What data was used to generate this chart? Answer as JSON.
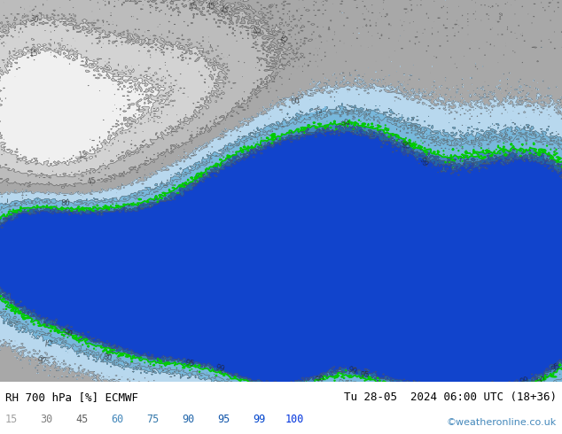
{
  "title_left": "RH 700 hPa [%] ECMWF",
  "title_right": "Tu 28-05  2024 06:00 UTC (18+36)",
  "credit": "©weatheronline.co.uk",
  "legend_values": [
    15,
    30,
    45,
    60,
    75,
    90,
    95,
    99,
    100
  ],
  "legend_text_colors": [
    "#a0a0a0",
    "#808080",
    "#606060",
    "#4488bb",
    "#3377aa",
    "#2266aa",
    "#1155aa",
    "#0044cc",
    "#0033dd"
  ],
  "contour_color": "#555555",
  "highlight_color": "#00cc00",
  "bg_color": "#d0d0d0",
  "fill_colors": [
    "#f0f0f0",
    "#d3d3d3",
    "#bcbcbc",
    "#a8a8a8",
    "#b8d8ee",
    "#78b8dc",
    "#4488c0",
    "#2266a8",
    "#1144cc"
  ],
  "fill_levels": [
    0,
    15,
    30,
    45,
    60,
    75,
    90,
    95,
    99,
    100
  ],
  "contour_levels": [
    15,
    30,
    45,
    60,
    75,
    80,
    90,
    95,
    99
  ],
  "label_levels": [
    15,
    30,
    45,
    60,
    75,
    80,
    90,
    95,
    99
  ],
  "fig_width": 6.34,
  "fig_height": 4.9,
  "dpi": 100
}
